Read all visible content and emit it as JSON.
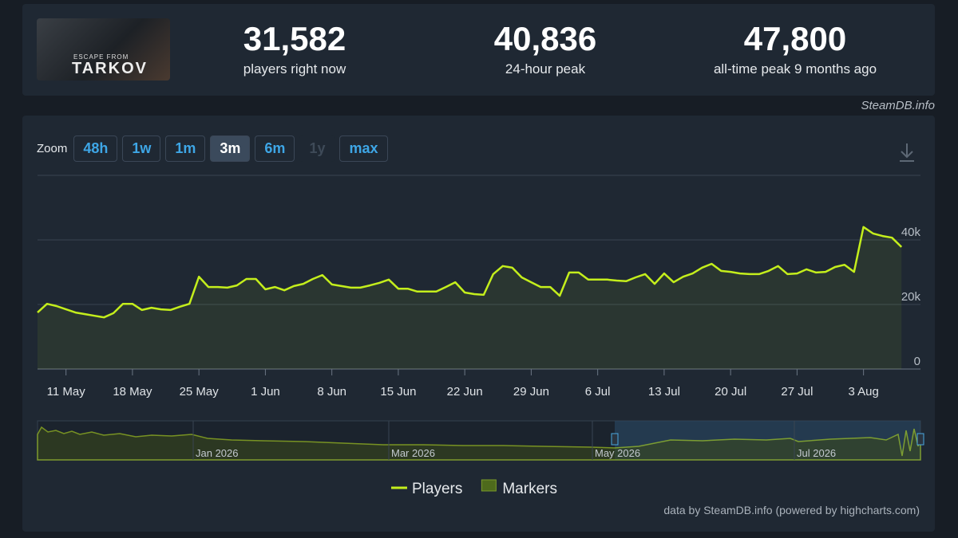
{
  "header": {
    "logo": {
      "line1": "ESCAPE FROM",
      "line2": "TARKOV"
    },
    "stats": [
      {
        "value": "31,582",
        "label": "players right now"
      },
      {
        "value": "40,836",
        "label": "24-hour peak"
      },
      {
        "value": "47,800",
        "label": "all-time peak 9 months ago"
      }
    ]
  },
  "credit_top": "SteamDB.info",
  "zoom": {
    "label": "Zoom",
    "options": [
      "48h",
      "1w",
      "1m",
      "3m",
      "6m",
      "1y",
      "max"
    ],
    "selected": "3m",
    "disabled": [
      "1y"
    ]
  },
  "chart_data": {
    "type": "line",
    "x": [
      "2026-05-08",
      "2026-05-09",
      "2026-05-10",
      "2026-05-11",
      "2026-05-12",
      "2026-05-13",
      "2026-05-14",
      "2026-05-15",
      "2026-05-16",
      "2026-05-17",
      "2026-05-18",
      "2026-05-19",
      "2026-05-20",
      "2026-05-21",
      "2026-05-22",
      "2026-05-23",
      "2026-05-24",
      "2026-05-25",
      "2026-05-26",
      "2026-05-27",
      "2026-05-28",
      "2026-05-29",
      "2026-05-30",
      "2026-05-31",
      "2026-06-01",
      "2026-06-02",
      "2026-06-03",
      "2026-06-04",
      "2026-06-05",
      "2026-06-06",
      "2026-06-07",
      "2026-06-08",
      "2026-06-09",
      "2026-06-10",
      "2026-06-11",
      "2026-06-12",
      "2026-06-13",
      "2026-06-14",
      "2026-06-15",
      "2026-06-16",
      "2026-06-17",
      "2026-06-18",
      "2026-06-19",
      "2026-06-20",
      "2026-06-21",
      "2026-06-22",
      "2026-06-23",
      "2026-06-24",
      "2026-06-25",
      "2026-06-26",
      "2026-06-27",
      "2026-06-28",
      "2026-06-29",
      "2026-06-30",
      "2026-07-01",
      "2026-07-02",
      "2026-07-03",
      "2026-07-04",
      "2026-07-05",
      "2026-07-06",
      "2026-07-07",
      "2026-07-08",
      "2026-07-09",
      "2026-07-10",
      "2026-07-11",
      "2026-07-12",
      "2026-07-13",
      "2026-07-14",
      "2026-07-15",
      "2026-07-16",
      "2026-07-17",
      "2026-07-18",
      "2026-07-19",
      "2026-07-20",
      "2026-07-21",
      "2026-07-22",
      "2026-07-23",
      "2026-07-24",
      "2026-07-25",
      "2026-07-26",
      "2026-07-27",
      "2026-07-28",
      "2026-07-29",
      "2026-07-30",
      "2026-07-31",
      "2026-08-01",
      "2026-08-02",
      "2026-08-03",
      "2026-08-04",
      "2026-08-05",
      "2026-08-06",
      "2026-08-07"
    ],
    "series": [
      {
        "name": "Players",
        "color": "#c4ee1c",
        "values": [
          17500,
          20200,
          19500,
          18500,
          17500,
          17000,
          16500,
          16000,
          17300,
          20200,
          20200,
          18300,
          19000,
          18500,
          18300,
          19300,
          20200,
          28600,
          25400,
          25400,
          25200,
          25900,
          27900,
          27900,
          24700,
          25400,
          24400,
          25700,
          26400,
          27900,
          29100,
          26200,
          25700,
          25200,
          25200,
          25900,
          26700,
          27700,
          24900,
          24900,
          24000,
          24000,
          24000,
          25400,
          26900,
          23700,
          23200,
          23000,
          29400,
          31900,
          31400,
          28400,
          26900,
          25400,
          25400,
          22700,
          29900,
          29900,
          27700,
          27700,
          27700,
          27400,
          27200,
          28400,
          29400,
          26400,
          29600,
          26900,
          28600,
          29600,
          31400,
          32600,
          30400,
          30100,
          29600,
          29400,
          29400,
          30400,
          31900,
          29400,
          29600,
          30900,
          29900,
          30100,
          31600,
          32300,
          30100,
          44000,
          42000,
          41200,
          40700,
          37800
        ]
      }
    ],
    "xlim": [
      "2026-05-08",
      "2026-08-09"
    ],
    "xticks": [
      {
        "value": "2026-05-11",
        "label": "11 May"
      },
      {
        "value": "2026-05-18",
        "label": "18 May"
      },
      {
        "value": "2026-05-25",
        "label": "25 May"
      },
      {
        "value": "2026-06-01",
        "label": "1 Jun"
      },
      {
        "value": "2026-06-08",
        "label": "8 Jun"
      },
      {
        "value": "2026-06-15",
        "label": "15 Jun"
      },
      {
        "value": "2026-06-22",
        "label": "22 Jun"
      },
      {
        "value": "2026-06-29",
        "label": "29 Jun"
      },
      {
        "value": "2026-07-06",
        "label": "6 Jul"
      },
      {
        "value": "2026-07-13",
        "label": "13 Jul"
      },
      {
        "value": "2026-07-20",
        "label": "20 Jul"
      },
      {
        "value": "2026-07-27",
        "label": "27 Jul"
      },
      {
        "value": "2026-08-03",
        "label": "3 Aug"
      }
    ],
    "ylim": [
      0,
      60000
    ],
    "yticks": [
      0,
      {
        "value": 20000,
        "label": "20k"
      },
      {
        "value": 40000,
        "label": "40k"
      }
    ],
    "grid": true,
    "legend_extra": [
      {
        "name": "Markers",
        "color": "#4e6a1c"
      }
    ]
  },
  "navigator": {
    "labels": [
      "Jan 2026",
      "Mar 2026",
      "May 2026",
      "Jul 2026"
    ]
  },
  "credit": "data by SteamDB.info (powered by highcharts.com)"
}
